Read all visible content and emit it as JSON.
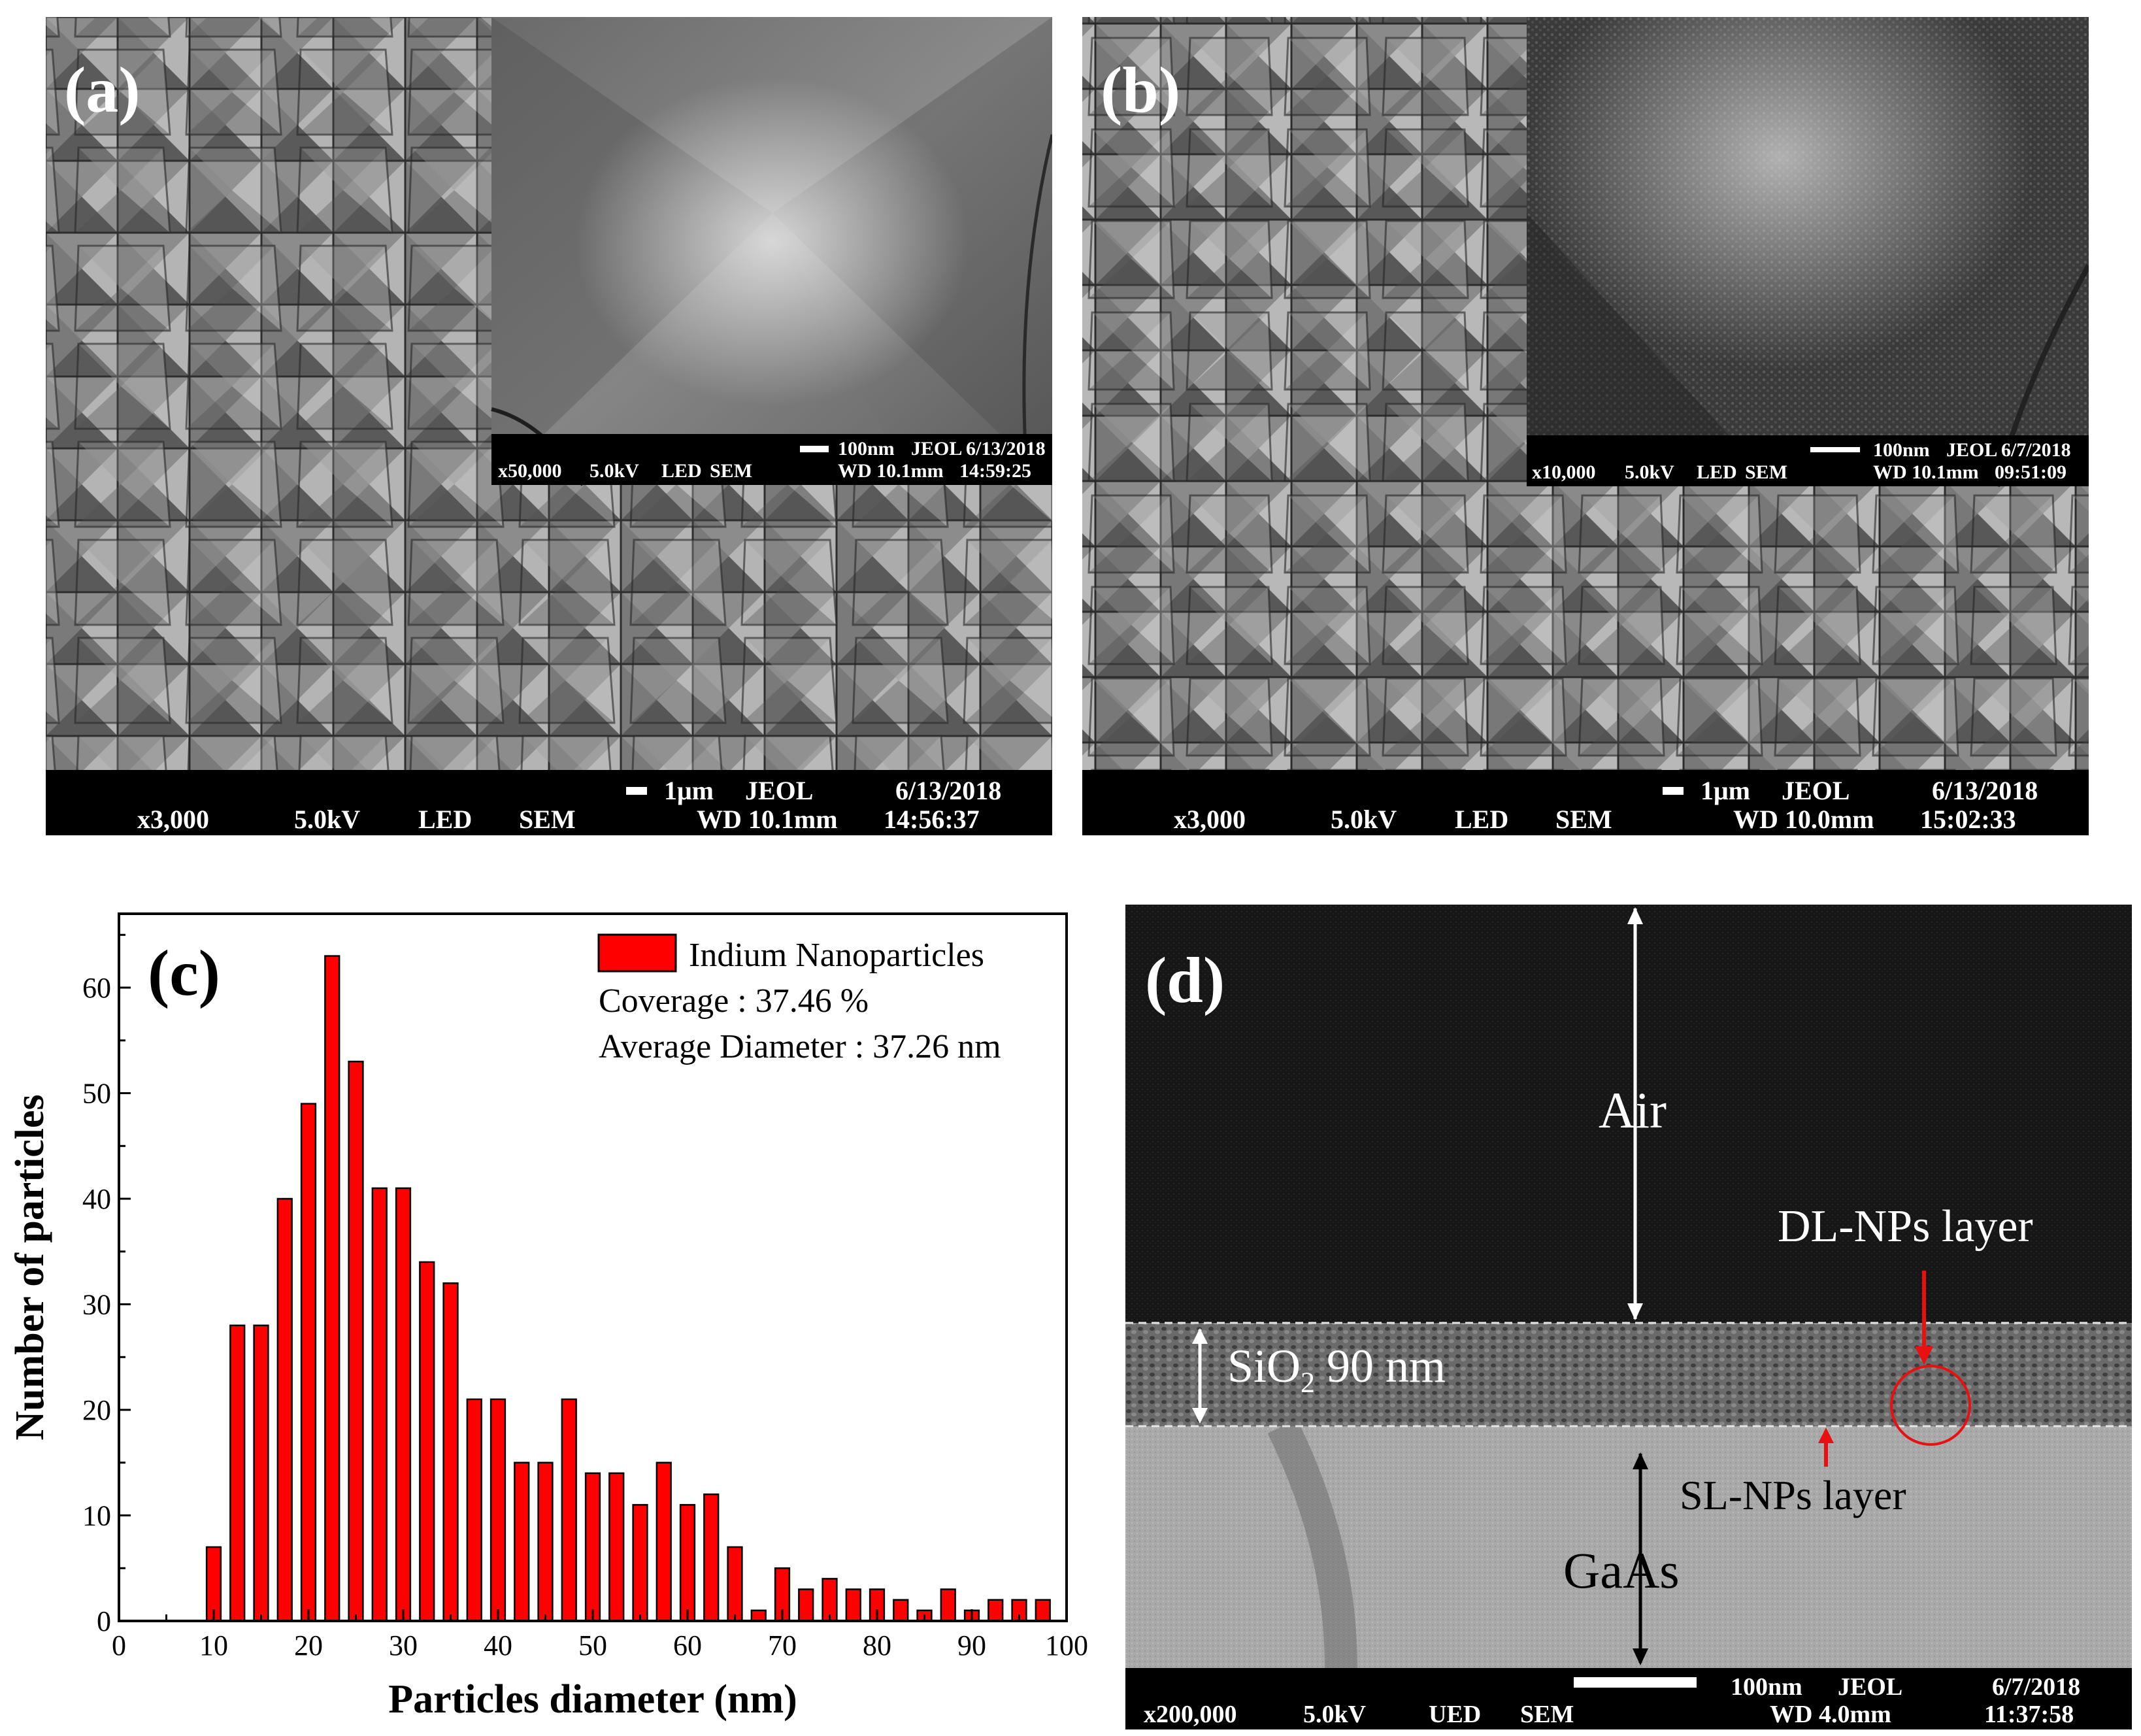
{
  "panel_a": {
    "label": "(a)",
    "main_bar": {
      "scale": "1μm",
      "maker": "JEOL",
      "date": "6/13/2018",
      "mag": "x3,000",
      "kv": "5.0kV",
      "det": "LED",
      "mode": "SEM",
      "wd": "WD  10.1mm",
      "time": "14:56:37"
    },
    "inset_bar": {
      "scale": "100nm",
      "maker": "JEOL",
      "date": "6/13/2018",
      "mag": "x50,000",
      "kv": "5.0kV",
      "det": "LED",
      "mode": "SEM",
      "wd": "WD  10.1mm",
      "time": "14:59:25"
    }
  },
  "panel_b": {
    "label": "(b)",
    "main_bar": {
      "scale": "1μm",
      "maker": "JEOL",
      "date": "6/13/2018",
      "mag": "x3,000",
      "kv": "5.0kV",
      "det": "LED",
      "mode": "SEM",
      "wd": "WD  10.0mm",
      "time": "15:02:33"
    },
    "inset_bar": {
      "scale": "100nm",
      "maker": "JEOL",
      "date": "6/7/2018",
      "mag": "x10,000",
      "kv": "5.0kV",
      "det": "LED",
      "mode": "SEM",
      "wd": "WD  10.1mm",
      "time": "09:51:09"
    }
  },
  "panel_c": {
    "label": "(c)"
  },
  "panel_d": {
    "label": "(d)",
    "air": "Air",
    "dl_layer": "DL-NPs layer",
    "sio2_prefix": "SiO",
    "sio2_sub": "2",
    "sio2_suffix": " 90 nm",
    "sl_layer": "SL-NPs layer",
    "gaas": "GaAs",
    "bar": {
      "scale": "100nm",
      "maker": "JEOL",
      "date": "6/7/2018",
      "mag": "x200,000",
      "kv": "5.0kV",
      "det": "UED",
      "mode": "SEM",
      "wd": "WD  4.0mm",
      "time": "11:37:58"
    },
    "colors": {
      "annotation_red": "#e81010",
      "text_white": "#ffffff"
    }
  },
  "chart_data": {
    "type": "bar",
    "xlabel": "Particles diameter (nm)",
    "ylabel": "Number of particles",
    "xlim": [
      0,
      100
    ],
    "ylim": [
      0,
      67
    ],
    "xticks": [
      0,
      10,
      20,
      30,
      40,
      50,
      60,
      70,
      80,
      90,
      100
    ],
    "yticks": [
      0,
      10,
      20,
      30,
      40,
      50,
      60
    ],
    "bar_color": "#ff0000",
    "legend": {
      "position": "top-right",
      "series_name": "Indium Nanoparticles",
      "lines": [
        "Coverage : 37.46 %",
        "Average Diameter : 37.26 nm"
      ]
    },
    "x": [
      10,
      12.5,
      15,
      17.5,
      20,
      22.5,
      25,
      27.5,
      30,
      32.5,
      35,
      37.5,
      40,
      42.5,
      45,
      47.5,
      50,
      52.5,
      55,
      57.5,
      60,
      62.5,
      65,
      67.5,
      70,
      72.5,
      75,
      77.5,
      80,
      82.5,
      85,
      87.5,
      90,
      92.5,
      95,
      97.5
    ],
    "values": [
      7,
      28,
      28,
      40,
      49,
      63,
      53,
      41,
      41,
      34,
      32,
      21,
      21,
      15,
      15,
      21,
      14,
      14,
      11,
      15,
      11,
      12,
      7,
      1,
      5,
      3,
      4,
      3,
      3,
      2,
      1,
      3,
      1,
      2,
      2,
      2
    ]
  }
}
